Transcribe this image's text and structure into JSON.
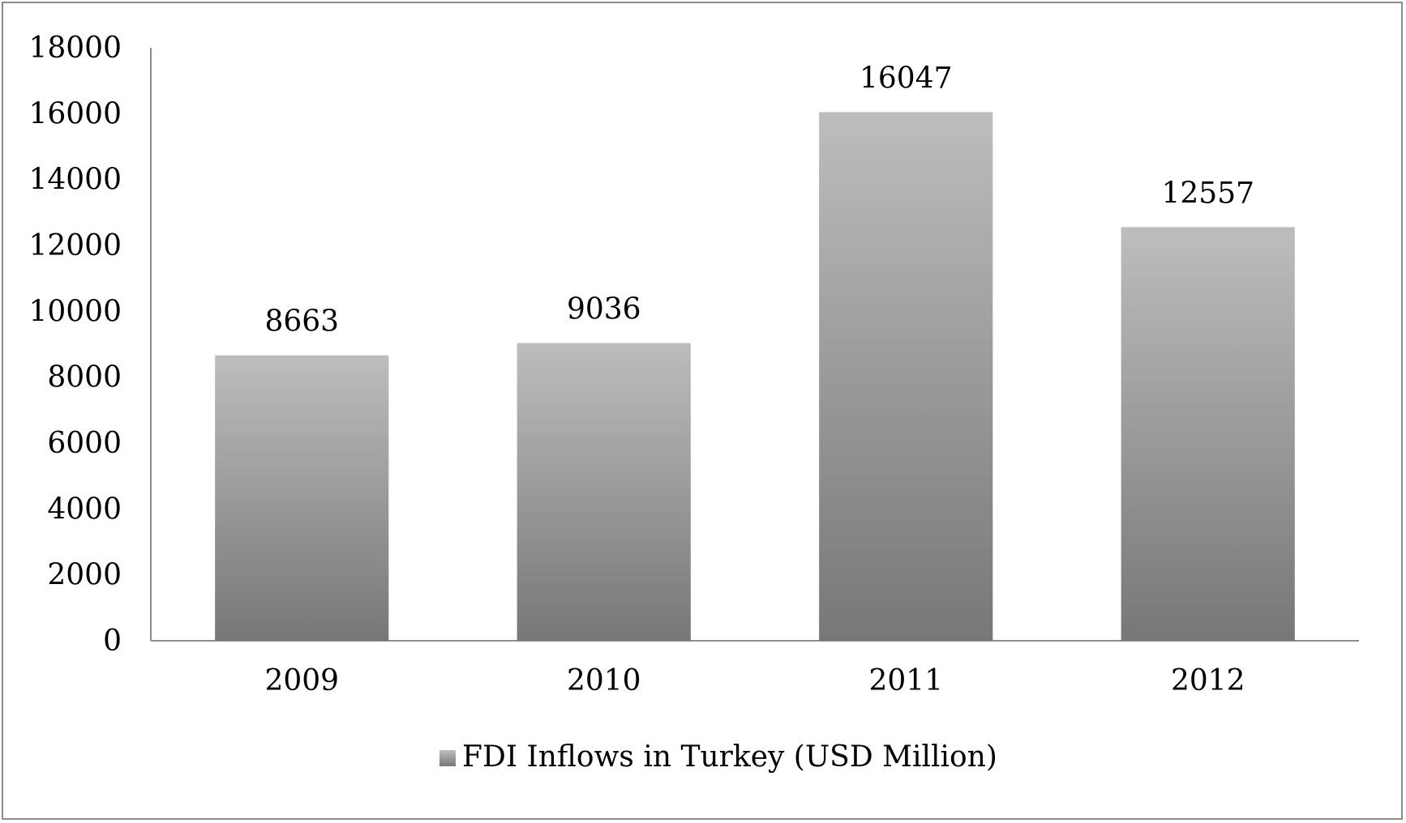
{
  "chart_data": {
    "type": "bar",
    "categories": [
      "2009",
      "2010",
      "2011",
      "2012"
    ],
    "series": [
      {
        "name": "FDI Inflows in Turkey (USD Million)",
        "values": [
          8663,
          9036,
          16047,
          12557
        ]
      }
    ],
    "data_labels": [
      "8663",
      "9036",
      "16047",
      "12557"
    ],
    "title": "",
    "xlabel": "",
    "ylabel": "",
    "ylim": [
      0,
      18000
    ],
    "yticks": [
      "0",
      "2000",
      "4000",
      "6000",
      "8000",
      "10000",
      "12000",
      "14000",
      "16000",
      "18000"
    ],
    "grid": false,
    "legend_position": "bottom",
    "colors": {
      "bar_top": "#bdbdbd",
      "bar_bottom": "#777777",
      "axis": "#8c8c8c"
    }
  }
}
